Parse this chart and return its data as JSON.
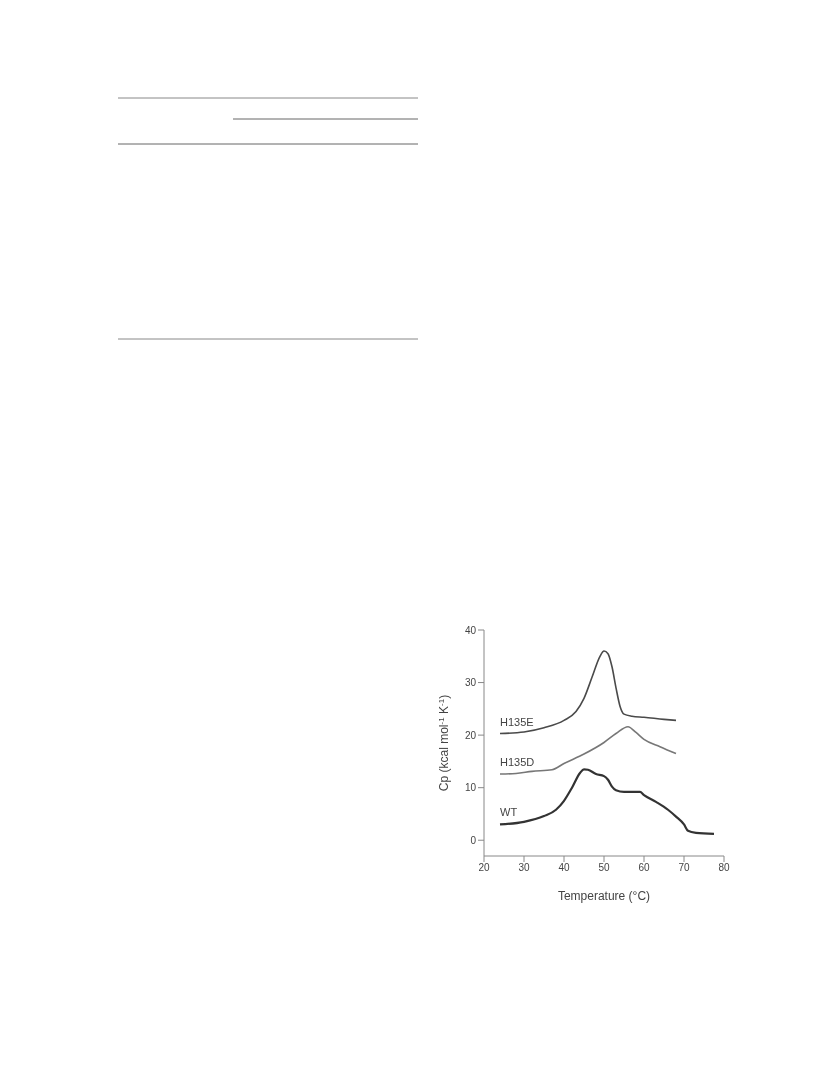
{
  "chart_data": {
    "type": "line",
    "xlabel": "Temperature (°C)",
    "ylabel": "Cp (kcal mol$^{-1}$ K$^{-1}$)",
    "xlim": [
      20,
      80
    ],
    "xticks": [
      20,
      30,
      40,
      50,
      60,
      70,
      80
    ],
    "ylim": [
      -3,
      40
    ],
    "yticks": [
      0,
      10,
      20,
      30,
      40
    ],
    "grid": false,
    "legend": false,
    "marker": "none",
    "line_style": "solid",
    "series": [
      {
        "name": "H135E",
        "color": "#4a4a4a",
        "x": [
          24,
          30,
          35,
          40,
          43,
          45,
          47,
          49,
          50,
          51,
          52,
          53,
          54,
          55,
          57,
          60,
          65,
          68
        ],
        "values": [
          20.3,
          20.6,
          21.4,
          22.8,
          24.5,
          27,
          31,
          35,
          36,
          35.5,
          33,
          29,
          25.5,
          24,
          23.6,
          23.4,
          23,
          22.8
        ]
      },
      {
        "name": "H135D",
        "color": "#777777",
        "x": [
          24,
          28,
          32,
          37,
          40,
          45,
          50,
          53,
          56,
          58,
          60,
          64,
          68
        ],
        "values": [
          12.6,
          12.7,
          13.1,
          13.4,
          14.6,
          16.4,
          18.6,
          20.3,
          21.6,
          20.5,
          19.2,
          17.8,
          16.5
        ]
      },
      {
        "name": "WT",
        "color": "#333333",
        "x": [
          24,
          30,
          35,
          38,
          40,
          42,
          44,
          45,
          46,
          48,
          50,
          51,
          52,
          53,
          55,
          58,
          59,
          60,
          63,
          66,
          68,
          70,
          71,
          73,
          77.5
        ],
        "values": [
          3,
          3.5,
          4.6,
          5.8,
          7.5,
          10,
          12.8,
          13.5,
          13.4,
          12.6,
          12.2,
          11.5,
          10.2,
          9.5,
          9.2,
          9.2,
          9.2,
          8.6,
          7.3,
          5.8,
          4.5,
          3,
          1.8,
          1.4,
          1.2
        ]
      }
    ]
  }
}
